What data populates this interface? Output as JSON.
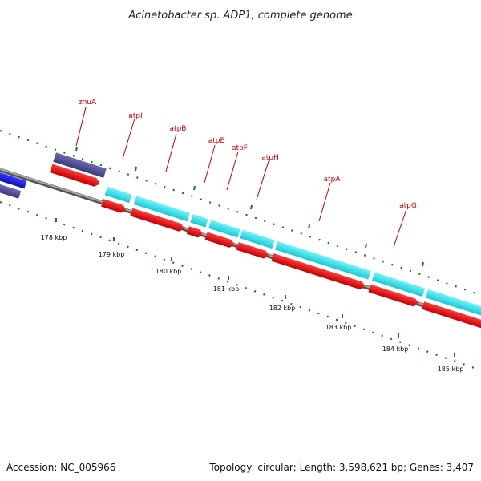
{
  "title": "Acinetobacter sp. ADP1, complete genome",
  "footer": {
    "accession": "Accession: NC_005966",
    "summary": "Topology: circular; Length: 3,598,621 bp; Genes: 3,407"
  },
  "scale": {
    "ticks": [
      {
        "label": "178 kbp"
      },
      {
        "label": "179 kbp"
      },
      {
        "label": "180 kbp"
      },
      {
        "label": "181 kbp"
      },
      {
        "label": "182 kbp"
      },
      {
        "label": "183 kbp"
      },
      {
        "label": "184 kbp"
      },
      {
        "label": "185 kbp"
      }
    ]
  },
  "genes": [
    {
      "name": "znuA"
    },
    {
      "name": "atpI"
    },
    {
      "name": "atpB"
    },
    {
      "name": "atpE"
    },
    {
      "name": "atpF"
    },
    {
      "name": "atpH"
    },
    {
      "name": "atpA"
    },
    {
      "name": "atpG"
    }
  ],
  "colors": {
    "cds_forward": "#ee0000",
    "cds_reverse": "#1a1aee",
    "orf_reverse": "#4b4b8c",
    "rna_track": "#33e6f0",
    "backbone": "#888888",
    "tick_marks": "#1a7a1a",
    "label_lines": "#cc0000"
  }
}
